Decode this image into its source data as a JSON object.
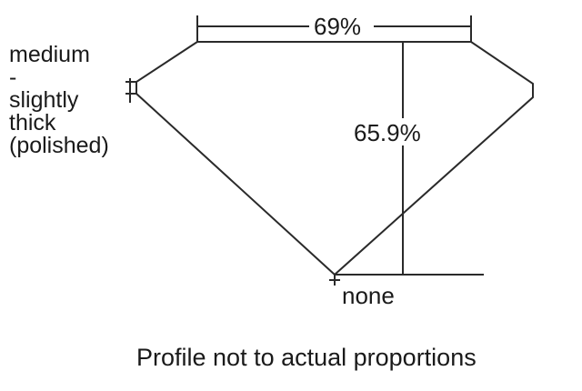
{
  "table_percent": "69%",
  "depth_percent": "65.9%",
  "girdle": [
    "medium",
    "-",
    "slightly",
    "thick",
    "(polished)"
  ],
  "culet": "none",
  "note": "Profile not to actual proportions",
  "line_color": "#2a2a2a"
}
